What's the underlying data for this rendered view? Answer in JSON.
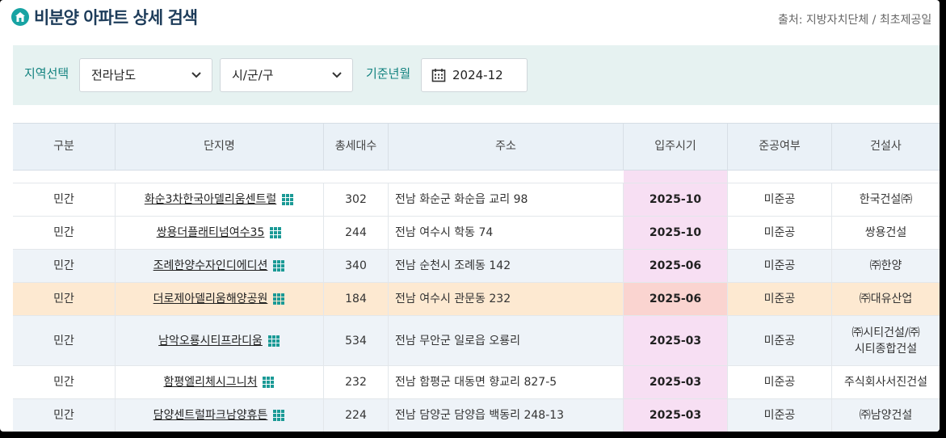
{
  "header": {
    "title": "비분양 아파트 상세 검색",
    "source": "출처: 지방자치단체 / 최초제공일"
  },
  "filter": {
    "region_label": "지역선택",
    "province_value": "전라남도",
    "district_value": "시/군/구",
    "date_label": "기준년월",
    "date_value": "2024-12"
  },
  "table": {
    "columns": [
      "구분",
      "단지명",
      "총세대수",
      "주소",
      "입주시기",
      "준공여부",
      "건설사"
    ],
    "rows": [
      {
        "type": "민간",
        "name": "화순3차한국아델리움센트럴",
        "units": "302",
        "address": "전남 화순군 화순읍 교리 98",
        "move_in": "2025-10",
        "status": "미준공",
        "builder": "한국건설㈜"
      },
      {
        "type": "민간",
        "name": "쌍용더플래티넘여수35",
        "units": "244",
        "address": "전남 여수시 학동 74",
        "move_in": "2025-10",
        "status": "미준공",
        "builder": "쌍용건설"
      },
      {
        "type": "민간",
        "name": "조례한양수자인디에디션",
        "units": "340",
        "address": "전남 순천시 조례동 142",
        "move_in": "2025-06",
        "status": "미준공",
        "builder": "㈜한양"
      },
      {
        "type": "민간",
        "name": "더로제아델리움해양공원",
        "units": "184",
        "address": "전남 여수시 관문동 232",
        "move_in": "2025-06",
        "status": "미준공",
        "builder": "㈜대유산업"
      },
      {
        "type": "민간",
        "name": "남악오룡시티프라디움",
        "units": "534",
        "address": "전남 무안군 일로읍 오룡리",
        "move_in": "2025-03",
        "status": "미준공",
        "builder": "㈜시티건설/㈜\n시티종합건설"
      },
      {
        "type": "민간",
        "name": "함평엘리체시그니처",
        "units": "232",
        "address": "전남 함평군 대동면 향교리 827-5",
        "move_in": "2025-03",
        "status": "미준공",
        "builder": "주식회사서진건설"
      },
      {
        "type": "민간",
        "name": "담양센트럴파크남양휴튼",
        "units": "224",
        "address": "전남 담양군 담양읍 백동리 248-13",
        "move_in": "2025-03",
        "status": "미준공",
        "builder": "㈜남양건설"
      }
    ]
  },
  "colors": {
    "accent": "#17a3a3",
    "highlight_row": "#fde9d1",
    "move_in_cell": "#f7dff3"
  }
}
